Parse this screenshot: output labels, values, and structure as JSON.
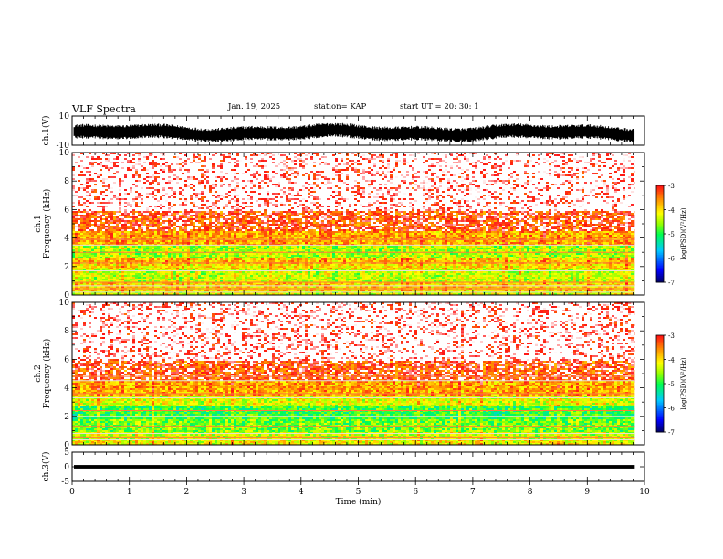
{
  "header": {
    "title": "VLF Spectra",
    "date": "Jan. 19, 2025",
    "station": "station= KAP",
    "start": "start  UT  =   20: 30: 1"
  },
  "colors": {
    "spectro_low": "#000060",
    "spectro_high": "#ff1010",
    "waveform": "#000000",
    "frame": "#000000"
  },
  "chart_data": [
    {
      "type": "line",
      "panel": "ch1-waveform",
      "ylabel": "ch.1(V)",
      "ylim": [
        -10,
        10
      ],
      "yticks": [
        "10",
        "-10"
      ],
      "xlim": [
        0,
        10
      ],
      "series": [
        {
          "description_envelope_center": [
            0.0,
            0.0
          ],
          "y_range": [
            -7,
            4
          ]
        }
      ]
    },
    {
      "type": "heatmap",
      "panel": "ch1-spectrogram",
      "ylabel": "ch.1\nFrequency  (kHz)",
      "ylim": [
        0,
        10
      ],
      "yticks": [
        "0",
        "2",
        "4",
        "6",
        "8",
        "10"
      ],
      "xlim": [
        0,
        9.83
      ],
      "colorbar": {
        "label": "log(PSD)(V²/Hz)",
        "range": [
          -7,
          -3
        ],
        "ticks": [
          "-3",
          "-4",
          "-5",
          "-6",
          "-7"
        ]
      },
      "bands_log_psd": [
        {
          "f_from": 0,
          "f_to": 0.3,
          "level": -4.5
        },
        {
          "f_from": 0.3,
          "f_to": 1.0,
          "level": -4.2
        },
        {
          "f_from": 1.0,
          "f_to": 1.8,
          "level": -4.6
        },
        {
          "f_from": 1.8,
          "f_to": 2.2,
          "level": -4.3
        },
        {
          "f_from": 2.2,
          "f_to": 2.6,
          "level": -4.1
        },
        {
          "f_from": 2.6,
          "f_to": 3.5,
          "level": -4.7
        },
        {
          "f_from": 3.5,
          "f_to": 4.5,
          "level": -4.0
        },
        {
          "f_from": 4.5,
          "f_to": 6.0,
          "level": -3.6
        },
        {
          "f_from": 6.0,
          "f_to": 10.0,
          "level": -3.2
        }
      ]
    },
    {
      "type": "heatmap",
      "panel": "ch2-spectrogram",
      "ylabel": "ch.2\nFrequency  (kHz)",
      "ylim": [
        0,
        10
      ],
      "yticks": [
        "0",
        "2",
        "4",
        "6",
        "8",
        "10"
      ],
      "xlim": [
        0,
        9.83
      ],
      "colorbar": {
        "label": "log(PSD)(V²/Hz)",
        "range": [
          -7,
          -3
        ],
        "ticks": [
          "-3",
          "-4",
          "-5",
          "-6",
          "-7"
        ]
      },
      "bands_log_psd": [
        {
          "f_from": 0,
          "f_to": 0.4,
          "level": -4.4
        },
        {
          "f_from": 0.4,
          "f_to": 1.0,
          "level": -4.6
        },
        {
          "f_from": 1.0,
          "f_to": 1.8,
          "level": -4.9
        },
        {
          "f_from": 1.8,
          "f_to": 2.8,
          "level": -5.1
        },
        {
          "f_from": 2.8,
          "f_to": 3.5,
          "level": -4.5
        },
        {
          "f_from": 3.5,
          "f_to": 4.5,
          "level": -4.0
        },
        {
          "f_from": 4.5,
          "f_to": 6.0,
          "level": -3.6
        },
        {
          "f_from": 6.0,
          "f_to": 10.0,
          "level": -3.2
        }
      ]
    },
    {
      "type": "line",
      "panel": "ch3-waveform",
      "ylabel": "ch.3(V)",
      "ylim": [
        -5,
        5
      ],
      "yticks": [
        "5",
        "0",
        "-5"
      ],
      "xlim": [
        0,
        10
      ],
      "series": [
        {
          "y_range": [
            -0.6,
            0.6
          ]
        }
      ]
    }
  ],
  "x_axis": {
    "label": "Time  (min)",
    "ticks": [
      "0",
      "1",
      "2",
      "3",
      "4",
      "5",
      "6",
      "7",
      "8",
      "9",
      "10"
    ],
    "range": [
      0,
      10
    ],
    "data_end": 9.83
  }
}
